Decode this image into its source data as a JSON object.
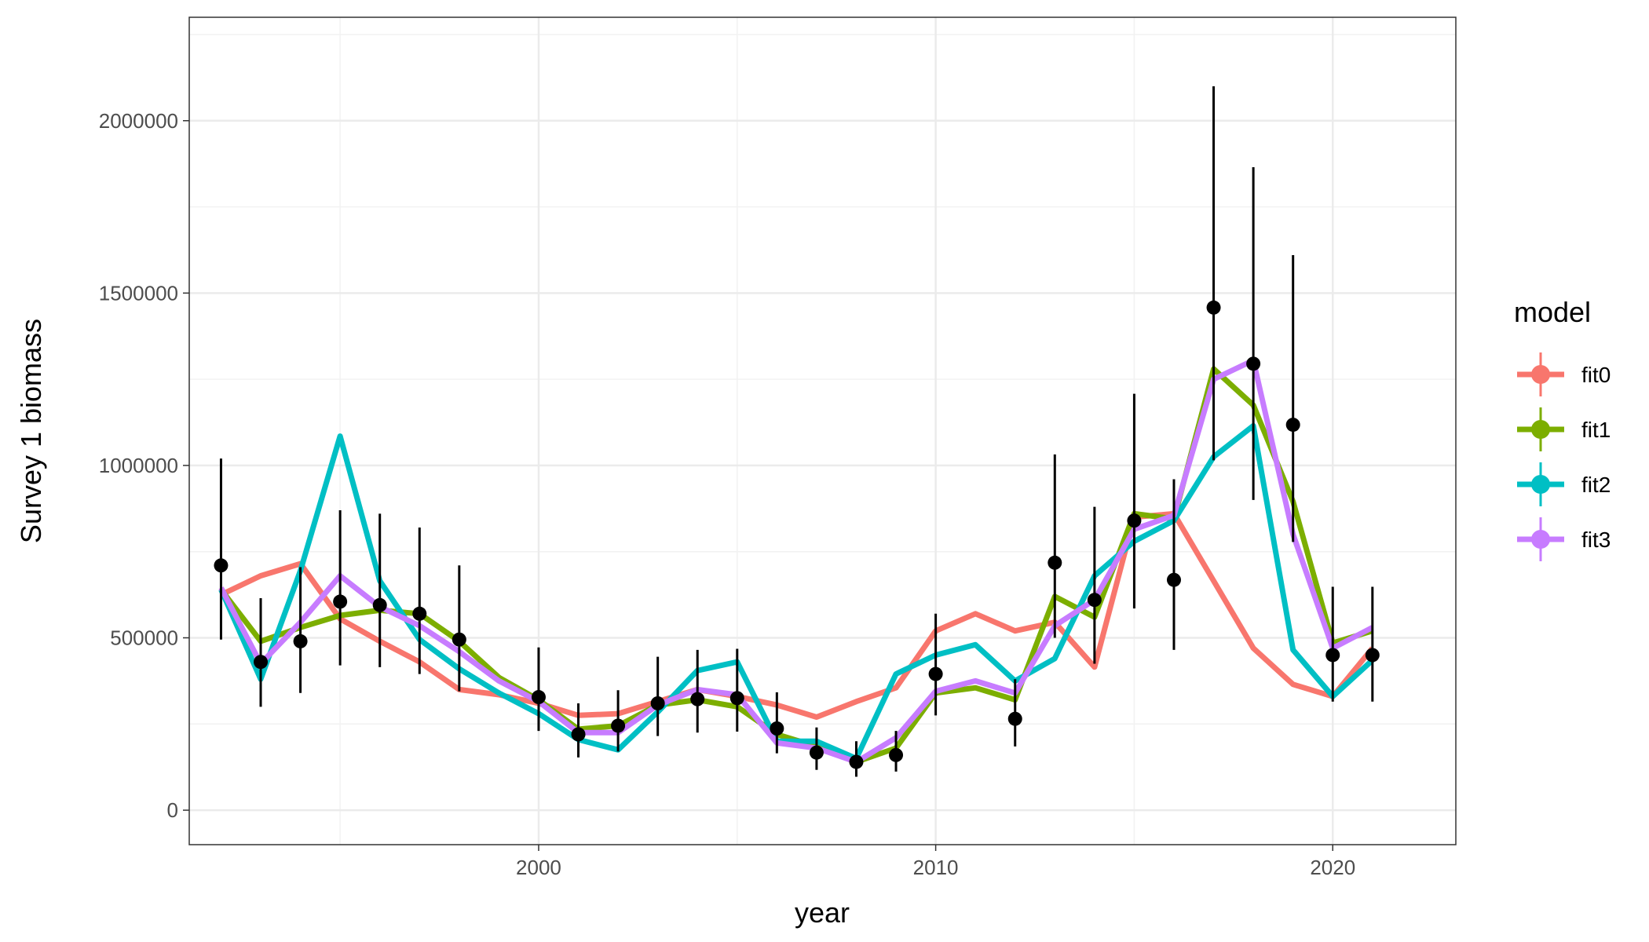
{
  "chart_data": {
    "type": "line",
    "xlabel": "year",
    "ylabel": "Survey 1 biomass",
    "xlim": [
      1991.2,
      2023.1
    ],
    "ylim": [
      -100000,
      2300000
    ],
    "x_ticks": [
      2000,
      2010,
      2020
    ],
    "x_tick_labels": [
      "2000",
      "2010",
      "2020"
    ],
    "y_ticks": [
      0,
      500000,
      1000000,
      1500000,
      2000000
    ],
    "y_tick_labels": [
      "0",
      "500000",
      "1000000",
      "1500000",
      "2000000"
    ],
    "grid": true,
    "legend": {
      "title": "model",
      "placement": "right"
    },
    "years": [
      1992,
      1993,
      1994,
      1995,
      1996,
      1997,
      1998,
      1999,
      2000,
      2001,
      2002,
      2003,
      2004,
      2005,
      2006,
      2007,
      2008,
      2009,
      2010,
      2011,
      2012,
      2013,
      2014,
      2015,
      2016,
      2017,
      2018,
      2019,
      2020,
      2021
    ],
    "series": [
      {
        "name": "fit0",
        "color": "#F8766D",
        "values": [
          625000,
          680000,
          715000,
          555000,
          490000,
          430000,
          350000,
          335000,
          310000,
          275000,
          280000,
          315000,
          350000,
          330000,
          305000,
          270000,
          315000,
          355000,
          520000,
          570000,
          520000,
          545000,
          415000,
          850000,
          860000,
          665000,
          470000,
          365000,
          330000,
          470000
        ]
      },
      {
        "name": "fit1",
        "color": "#7CAE00",
        "values": [
          640000,
          490000,
          530000,
          565000,
          580000,
          570000,
          490000,
          385000,
          320000,
          235000,
          245000,
          305000,
          320000,
          300000,
          220000,
          185000,
          140000,
          180000,
          340000,
          355000,
          320000,
          620000,
          560000,
          860000,
          845000,
          1280000,
          1175000,
          895000,
          485000,
          520000
        ]
      },
      {
        "name": "fit2",
        "color": "#00BFC4",
        "values": [
          640000,
          380000,
          695000,
          1085000,
          665000,
          495000,
          410000,
          340000,
          280000,
          205000,
          175000,
          285000,
          405000,
          430000,
          200000,
          200000,
          150000,
          395000,
          450000,
          480000,
          375000,
          440000,
          680000,
          780000,
          840000,
          1025000,
          1115000,
          465000,
          330000,
          435000
        ]
      },
      {
        "name": "fit3",
        "color": "#C77CFF",
        "values": [
          645000,
          425000,
          545000,
          680000,
          590000,
          535000,
          460000,
          375000,
          315000,
          225000,
          225000,
          305000,
          350000,
          335000,
          195000,
          180000,
          140000,
          210000,
          345000,
          375000,
          340000,
          535000,
          610000,
          815000,
          855000,
          1250000,
          1305000,
          800000,
          470000,
          530000
        ]
      }
    ],
    "observed": {
      "color": "#000000",
      "points": [
        {
          "x": 1992,
          "y": 710000,
          "lo": 495000,
          "hi": 1020000
        },
        {
          "x": 1993,
          "y": 430000,
          "lo": 300000,
          "hi": 615000
        },
        {
          "x": 1994,
          "y": 490000,
          "lo": 340000,
          "hi": 705000
        },
        {
          "x": 1995,
          "y": 605000,
          "lo": 420000,
          "hi": 870000
        },
        {
          "x": 1996,
          "y": 595000,
          "lo": 415000,
          "hi": 860000
        },
        {
          "x": 1997,
          "y": 570000,
          "lo": 395000,
          "hi": 820000
        },
        {
          "x": 1998,
          "y": 495000,
          "lo": 345000,
          "hi": 710000
        },
        {
          "x": 2000,
          "y": 328000,
          "lo": 230000,
          "hi": 472000
        },
        {
          "x": 2001,
          "y": 220000,
          "lo": 153000,
          "hi": 310000
        },
        {
          "x": 2002,
          "y": 245000,
          "lo": 170000,
          "hi": 348000
        },
        {
          "x": 2003,
          "y": 310000,
          "lo": 215000,
          "hi": 445000
        },
        {
          "x": 2004,
          "y": 322000,
          "lo": 225000,
          "hi": 465000
        },
        {
          "x": 2005,
          "y": 325000,
          "lo": 228000,
          "hi": 468000
        },
        {
          "x": 2006,
          "y": 237000,
          "lo": 165000,
          "hi": 342000
        },
        {
          "x": 2007,
          "y": 167000,
          "lo": 117000,
          "hi": 240000
        },
        {
          "x": 2008,
          "y": 140000,
          "lo": 97000,
          "hi": 200000
        },
        {
          "x": 2009,
          "y": 160000,
          "lo": 112000,
          "hi": 230000
        },
        {
          "x": 2010,
          "y": 395000,
          "lo": 275000,
          "hi": 570000
        },
        {
          "x": 2012,
          "y": 265000,
          "lo": 185000,
          "hi": 380000
        },
        {
          "x": 2013,
          "y": 718000,
          "lo": 500000,
          "hi": 1032000
        },
        {
          "x": 2014,
          "y": 610000,
          "lo": 425000,
          "hi": 880000
        },
        {
          "x": 2015,
          "y": 840000,
          "lo": 585000,
          "hi": 1208000
        },
        {
          "x": 2016,
          "y": 668000,
          "lo": 465000,
          "hi": 960000
        },
        {
          "x": 2017,
          "y": 1458000,
          "lo": 1015000,
          "hi": 2100000
        },
        {
          "x": 2018,
          "y": 1295000,
          "lo": 900000,
          "hi": 1865000
        },
        {
          "x": 2019,
          "y": 1118000,
          "lo": 778000,
          "hi": 1610000
        },
        {
          "x": 2020,
          "y": 450000,
          "lo": 315000,
          "hi": 648000
        },
        {
          "x": 2021,
          "y": 450000,
          "lo": 315000,
          "hi": 648000
        }
      ]
    }
  }
}
